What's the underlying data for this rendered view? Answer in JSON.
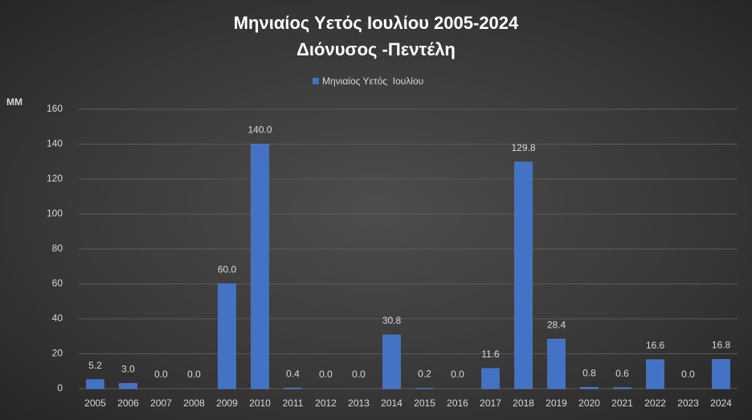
{
  "chart_data": {
    "type": "bar",
    "title": "Μηνιαίος Υετός Ιουλίου 2005-2024",
    "subtitle": "Διόνυσος -Πεντέλη",
    "y_label": "MM",
    "categories": [
      "2005",
      "2006",
      "2007",
      "2008",
      "2009",
      "2010",
      "2011",
      "2012",
      "2013",
      "2014",
      "2015",
      "2016",
      "2017",
      "2018",
      "2019",
      "2020",
      "2021",
      "2022",
      "2023",
      "2024"
    ],
    "series": [
      {
        "name": "Μηνιαίος Υετός  Ιουλίου",
        "color": "#4472c4",
        "values": [
          5.2,
          3.0,
          0.0,
          0.0,
          60.0,
          140.0,
          0.4,
          0.0,
          0.0,
          30.8,
          0.2,
          0.0,
          11.6,
          129.8,
          28.4,
          0.8,
          0.6,
          16.6,
          0.0,
          16.8
        ],
        "value_labels": [
          "5.2",
          "3.0",
          "0.0",
          "0.0",
          "60.0",
          "140.0",
          "0.4",
          "0.0",
          "0.0",
          "30.8",
          "0.2",
          "0.0",
          "11.6",
          "129.8",
          "28.4",
          "0.8",
          "0.6",
          "16.6",
          "0.0",
          "16.8"
        ]
      }
    ],
    "ylim": [
      0,
      160
    ],
    "yticks": [
      0,
      20,
      40,
      60,
      80,
      100,
      120,
      140,
      160
    ],
    "grid": true,
    "legend": "top"
  }
}
